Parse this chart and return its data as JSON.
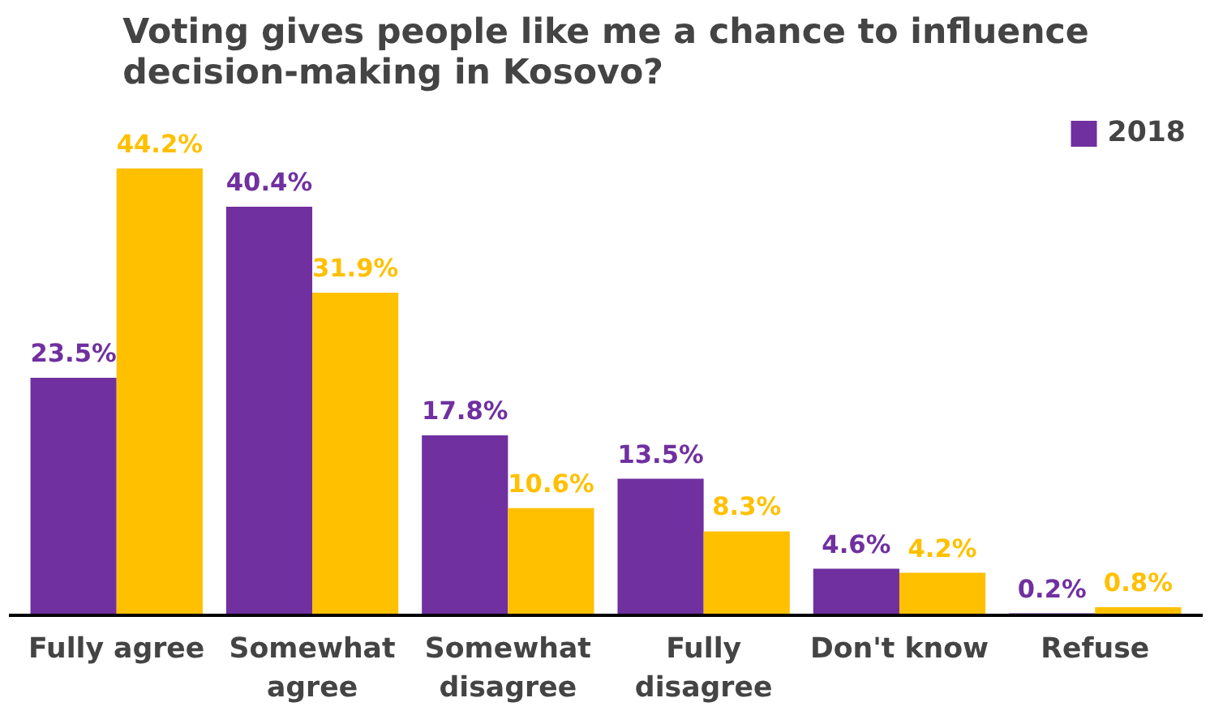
{
  "chart_data": {
    "type": "bar",
    "title": "Voting gives people like me a chance to influence decision-making in Kosovo?",
    "categories": [
      "Fully agree",
      "Somewhat agree",
      "Somewhat disagree",
      "Fully disagree",
      "Don't know",
      "Refuse"
    ],
    "series": [
      {
        "name": "2018",
        "color": "#7030a0",
        "values": [
          23.5,
          40.4,
          17.8,
          13.5,
          4.6,
          0.2
        ],
        "value_labels": [
          "23.5%",
          "40.4%",
          "17.8%",
          "13.5%",
          "4.6%",
          "0.2%"
        ]
      },
      {
        "color": "#ffc000",
        "values": [
          44.2,
          31.9,
          10.6,
          8.3,
          4.2,
          0.8
        ],
        "value_labels": [
          "44.2%",
          "31.9%",
          "10.6%",
          "8.3%",
          "4.2%",
          "0.8%"
        ]
      }
    ],
    "legend": "top right",
    "grid": false
  }
}
